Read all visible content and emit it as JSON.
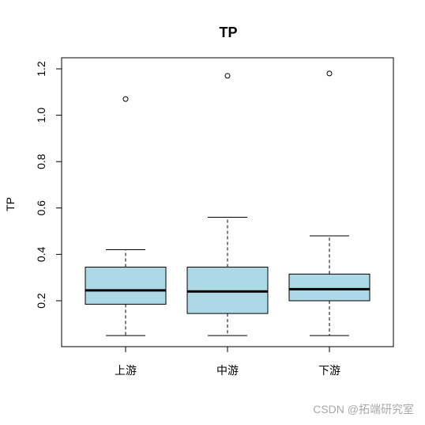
{
  "chart_data": {
    "type": "boxplot",
    "title": "TP",
    "ylabel": "TP",
    "xlabel": "",
    "ylim": [
      0.05,
      1.22
    ],
    "yticks": [
      0.2,
      0.4,
      0.6,
      0.8,
      1.0,
      1.2
    ],
    "ytick_labels": [
      "0.2",
      "0.4",
      "0.6",
      "0.8",
      "1.0",
      "1.2"
    ],
    "categories": [
      "上游",
      "中游",
      "下游"
    ],
    "box_color": "#add8e6",
    "grid": false,
    "boxes": [
      {
        "category": "上游",
        "whisker_low": 0.05,
        "q1": 0.185,
        "median": 0.245,
        "q3": 0.345,
        "whisker_high": 0.42,
        "outliers": [
          1.07
        ]
      },
      {
        "category": "中游",
        "whisker_low": 0.05,
        "q1": 0.145,
        "median": 0.24,
        "q3": 0.345,
        "whisker_high": 0.56,
        "outliers": [
          1.17
        ]
      },
      {
        "category": "下游",
        "whisker_low": 0.05,
        "q1": 0.2,
        "median": 0.25,
        "q3": 0.315,
        "whisker_high": 0.48,
        "outliers": [
          1.18
        ]
      }
    ]
  },
  "watermark": "CSDN @拓端研究室"
}
